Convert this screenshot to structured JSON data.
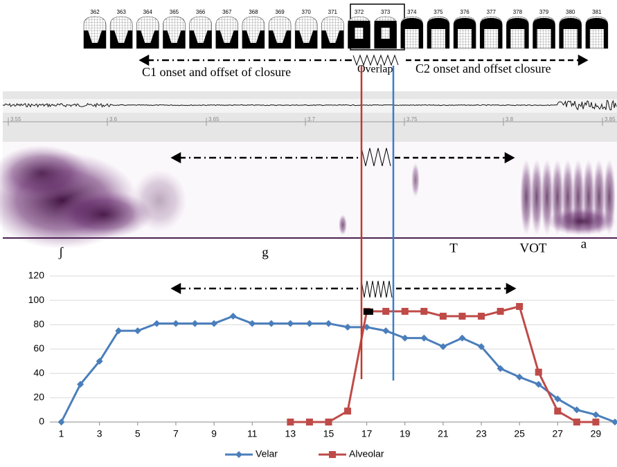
{
  "epg": {
    "frames": [
      "362",
      "363",
      "364",
      "365",
      "366",
      "367",
      "368",
      "369",
      "370",
      "371",
      "372",
      "373",
      "374",
      "375",
      "376",
      "377",
      "378",
      "379",
      "380",
      "381"
    ]
  },
  "annotations": {
    "c1": "C1 onset and offset of closure",
    "overlap": "Overlap",
    "c2": "C2 onset and offset closure"
  },
  "waveform": {
    "ticks": [
      "3.55",
      "3.6",
      "3.65",
      "3.7",
      "3.75",
      "3.8",
      "3.85"
    ]
  },
  "segments": [
    "ʃ",
    "g",
    "T",
    "VOT",
    "a"
  ],
  "chart_data": {
    "type": "line",
    "x": [
      1,
      2,
      3,
      4,
      5,
      6,
      7,
      8,
      9,
      10,
      11,
      12,
      13,
      14,
      15,
      16,
      17,
      18,
      19,
      20,
      21,
      22,
      23,
      24,
      25,
      26,
      27,
      28,
      29,
      30
    ],
    "series": [
      {
        "name": "Velar",
        "color": "#4a7ebb",
        "marker": "diamond",
        "values": [
          0,
          31,
          50,
          75,
          75,
          81,
          81,
          81,
          81,
          87,
          81,
          81,
          81,
          81,
          81,
          78,
          78,
          75,
          69,
          69,
          62,
          69,
          62,
          44,
          37,
          31,
          19,
          10,
          6,
          0
        ]
      },
      {
        "name": "Alveolar",
        "color": "#be4b48",
        "marker": "square",
        "values": [
          null,
          null,
          null,
          null,
          null,
          null,
          null,
          null,
          null,
          null,
          null,
          null,
          0,
          0,
          0,
          9,
          91,
          91,
          91,
          91,
          87,
          87,
          87,
          91,
          95,
          41,
          9,
          0,
          0,
          null
        ]
      }
    ],
    "xlim": [
      0.4,
      30
    ],
    "xticks": [
      1,
      3,
      5,
      7,
      9,
      11,
      13,
      15,
      17,
      19,
      21,
      23,
      25,
      27,
      29
    ],
    "ylim": [
      0,
      120
    ],
    "yticks": [
      0,
      20,
      40,
      60,
      80,
      100,
      120
    ],
    "grid": true,
    "legend": "bottom"
  }
}
